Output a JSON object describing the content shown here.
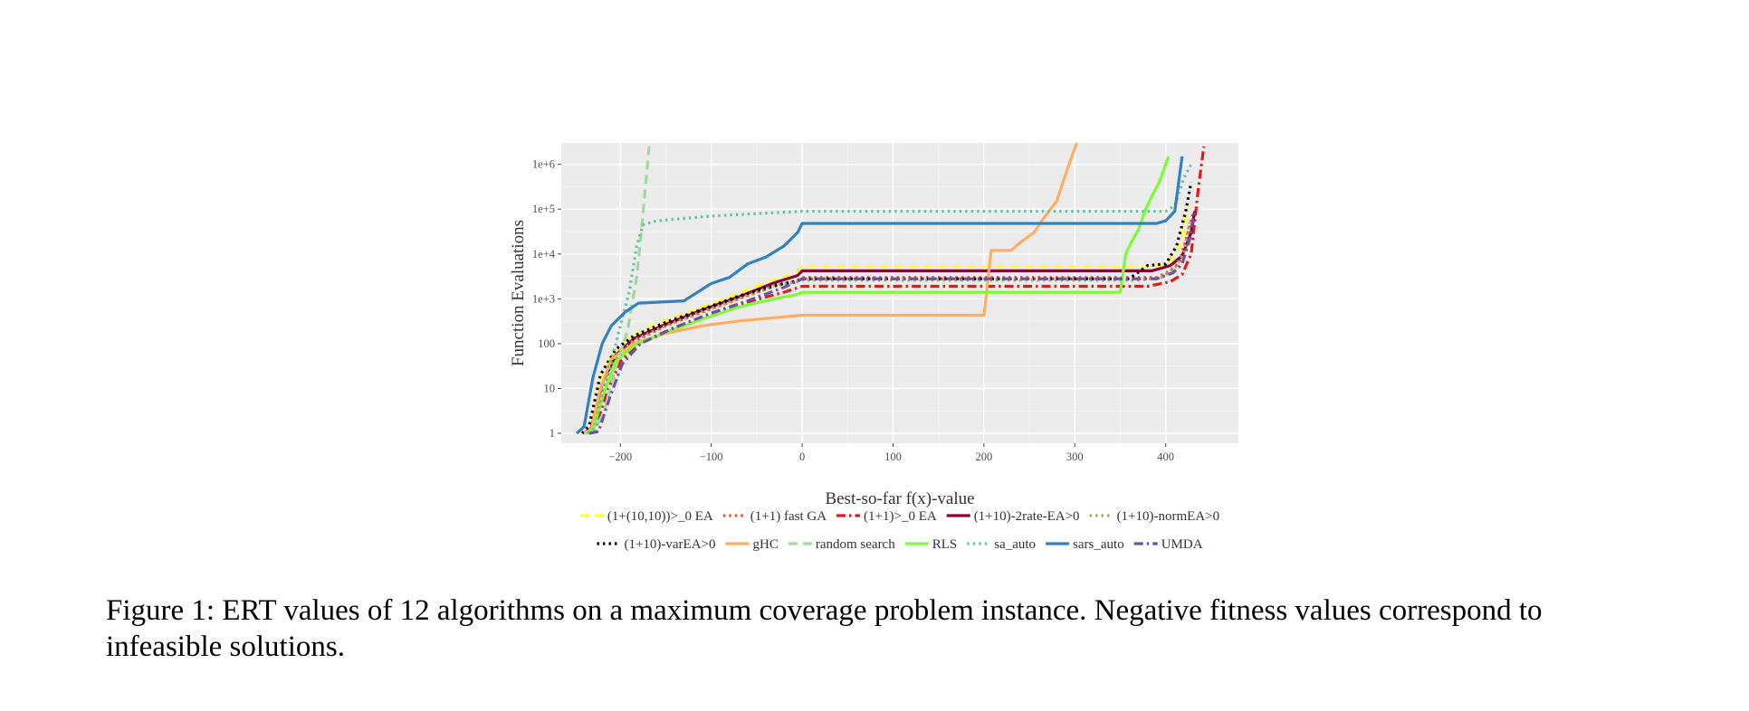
{
  "caption": "Figure 1: ERT values of 12 algorithms on a maximum coverage problem instance. Negative fitness values correspond to infeasible solutions.",
  "chart_data": {
    "type": "line",
    "title": "",
    "xlabel": "Best-so-far f(x)-value",
    "ylabel": "Function Evaluations",
    "xlim": [
      -265,
      480
    ],
    "ylim": [
      0.6,
      3000000
    ],
    "y_scale": "log10",
    "x_ticks": [
      -200,
      -100,
      0,
      100,
      200,
      300,
      400
    ],
    "x_tick_labels": [
      "−200",
      "−100",
      "0",
      "100",
      "200",
      "300",
      "400"
    ],
    "y_ticks": [
      1,
      10,
      100,
      1000,
      10000,
      100000,
      1000000
    ],
    "y_tick_labels": [
      "1",
      "10",
      "100",
      "1e+3",
      "1e+4",
      "1e+5",
      "1e+6"
    ],
    "grid": true,
    "legend_position": "bottom",
    "series": [
      {
        "name": "(1+(10,10))>_0 EA",
        "color": "#ffff33",
        "dash": "dashed",
        "points": [
          [
            -240,
            1
          ],
          [
            -232,
            1.3
          ],
          [
            -222,
            15
          ],
          [
            -210,
            55
          ],
          [
            -190,
            140
          ],
          [
            -160,
            280
          ],
          [
            -120,
            550
          ],
          [
            -80,
            1100
          ],
          [
            -40,
            2300
          ],
          [
            -5,
            3800
          ],
          [
            0,
            5200
          ],
          [
            380,
            5200
          ],
          [
            400,
            5500
          ],
          [
            410,
            9000
          ],
          [
            418,
            20000
          ],
          [
            425,
            120000
          ]
        ]
      },
      {
        "name": "(1+1) fast GA",
        "color": "#fc4e2a",
        "dash": "dotted",
        "points": [
          [
            -238,
            1
          ],
          [
            -230,
            1.2
          ],
          [
            -218,
            10
          ],
          [
            -205,
            45
          ],
          [
            -185,
            110
          ],
          [
            -150,
            250
          ],
          [
            -110,
            500
          ],
          [
            -70,
            1000
          ],
          [
            -30,
            1900
          ],
          [
            -5,
            2600
          ],
          [
            0,
            3000
          ],
          [
            390,
            3000
          ],
          [
            405,
            4200
          ],
          [
            415,
            6500
          ],
          [
            422,
            20000
          ],
          [
            430,
            80000
          ]
        ]
      },
      {
        "name": "(1+1)>_0 EA",
        "color": "#e31a1c",
        "dash": "dashdot",
        "points": [
          [
            -236,
            1
          ],
          [
            -228,
            1.2
          ],
          [
            -215,
            8
          ],
          [
            -200,
            40
          ],
          [
            -180,
            100
          ],
          [
            -140,
            230
          ],
          [
            -100,
            450
          ],
          [
            -60,
            850
          ],
          [
            -20,
            1400
          ],
          [
            0,
            1900
          ],
          [
            380,
            1900
          ],
          [
            405,
            2400
          ],
          [
            418,
            3500
          ],
          [
            428,
            10000
          ],
          [
            436,
            300000
          ],
          [
            442,
            2500000
          ]
        ]
      },
      {
        "name": "(1+10)-2rate-EA>0",
        "color": "#8b0038",
        "dash": "solid",
        "points": [
          [
            -240,
            1
          ],
          [
            -232,
            1.3
          ],
          [
            -220,
            13
          ],
          [
            -205,
            55
          ],
          [
            -185,
            130
          ],
          [
            -150,
            270
          ],
          [
            -110,
            560
          ],
          [
            -70,
            1100
          ],
          [
            -30,
            2300
          ],
          [
            -5,
            3300
          ],
          [
            0,
            4200
          ],
          [
            385,
            4200
          ],
          [
            405,
            5500
          ],
          [
            418,
            9000
          ],
          [
            428,
            30000
          ],
          [
            432,
            90000
          ]
        ]
      },
      {
        "name": "(1+10)-normEA>0",
        "color": "#a6a66a",
        "dash": "dotted",
        "points": [
          [
            -240,
            1
          ],
          [
            -232,
            1.3
          ],
          [
            -220,
            13
          ],
          [
            -205,
            52
          ],
          [
            -185,
            120
          ],
          [
            -150,
            250
          ],
          [
            -110,
            520
          ],
          [
            -70,
            1000
          ],
          [
            -30,
            2000
          ],
          [
            -5,
            2400
          ],
          [
            0,
            2600
          ],
          [
            370,
            2600
          ],
          [
            395,
            3000
          ],
          [
            410,
            4800
          ],
          [
            420,
            11000
          ],
          [
            426,
            50000
          ]
        ]
      },
      {
        "name": "(1+10)-varEA>0",
        "color": "#000000",
        "dash": "dotted",
        "points": [
          [
            -242,
            1
          ],
          [
            -234,
            1.5
          ],
          [
            -222,
            20
          ],
          [
            -205,
            75
          ],
          [
            -185,
            150
          ],
          [
            -150,
            300
          ],
          [
            -110,
            580
          ],
          [
            -70,
            1150
          ],
          [
            -30,
            2000
          ],
          [
            -5,
            2500
          ],
          [
            0,
            2800
          ],
          [
            360,
            2800
          ],
          [
            380,
            5500
          ],
          [
            400,
            6000
          ],
          [
            412,
            15000
          ],
          [
            422,
            90000
          ],
          [
            428,
            400000
          ]
        ]
      },
      {
        "name": "gHC",
        "color": "#fdae61",
        "dash": "solid",
        "points": [
          [
            -240,
            1
          ],
          [
            -232,
            1.2
          ],
          [
            -222,
            10
          ],
          [
            -210,
            45
          ],
          [
            -185,
            100
          ],
          [
            -150,
            170
          ],
          [
            -110,
            250
          ],
          [
            -70,
            320
          ],
          [
            -30,
            380
          ],
          [
            0,
            430
          ],
          [
            200,
            430
          ],
          [
            208,
            12000
          ],
          [
            230,
            12000
          ],
          [
            240,
            18000
          ],
          [
            255,
            30000
          ],
          [
            265,
            60000
          ],
          [
            280,
            150000
          ],
          [
            292,
            800000
          ],
          [
            302,
            3000000
          ]
        ]
      },
      {
        "name": "random search",
        "color": "#a1d99b",
        "dash": "dashed",
        "points": [
          [
            -236,
            1
          ],
          [
            -228,
            1.2
          ],
          [
            -218,
            3
          ],
          [
            -205,
            30
          ],
          [
            -192,
            200
          ],
          [
            -182,
            3000
          ],
          [
            -176,
            50000
          ],
          [
            -172,
            400000
          ],
          [
            -168,
            3000000
          ]
        ]
      },
      {
        "name": "RLS",
        "color": "#7cfc38",
        "dash": "solid",
        "points": [
          [
            -238,
            1
          ],
          [
            -230,
            1.2
          ],
          [
            -218,
            8
          ],
          [
            -205,
            40
          ],
          [
            -185,
            90
          ],
          [
            -150,
            180
          ],
          [
            -110,
            350
          ],
          [
            -70,
            650
          ],
          [
            -30,
            1000
          ],
          [
            -5,
            1250
          ],
          [
            0,
            1400
          ],
          [
            350,
            1400
          ],
          [
            356,
            10000
          ],
          [
            362,
            18000
          ],
          [
            370,
            35000
          ],
          [
            378,
            100000
          ],
          [
            385,
            200000
          ],
          [
            393,
            400000
          ],
          [
            400,
            1000000
          ],
          [
            403,
            1500000
          ]
        ]
      },
      {
        "name": "sa_auto",
        "color": "#66c2a5",
        "dash": "dotted",
        "points": [
          [
            -236,
            1
          ],
          [
            -228,
            1.3
          ],
          [
            -218,
            12
          ],
          [
            -205,
            100
          ],
          [
            -190,
            1500
          ],
          [
            -182,
            15000
          ],
          [
            -175,
            45000
          ],
          [
            -160,
            55000
          ],
          [
            -130,
            62000
          ],
          [
            -100,
            70000
          ],
          [
            -60,
            78000
          ],
          [
            -20,
            85000
          ],
          [
            0,
            90000
          ],
          [
            400,
            90000
          ],
          [
            410,
            120000
          ],
          [
            420,
            500000
          ],
          [
            428,
            1000000
          ]
        ]
      },
      {
        "name": "sars_auto",
        "color": "#3182bd",
        "dash": "solid",
        "points": [
          [
            -248,
            1
          ],
          [
            -240,
            1.4
          ],
          [
            -230,
            18
          ],
          [
            -220,
            100
          ],
          [
            -210,
            250
          ],
          [
            -195,
            500
          ],
          [
            -180,
            800
          ],
          [
            -130,
            900
          ],
          [
            -100,
            2200
          ],
          [
            -80,
            3000
          ],
          [
            -60,
            6000
          ],
          [
            -40,
            8500
          ],
          [
            -20,
            15000
          ],
          [
            -5,
            30000
          ],
          [
            0,
            48000
          ],
          [
            390,
            48000
          ],
          [
            400,
            55000
          ],
          [
            410,
            90000
          ],
          [
            418,
            1500000
          ]
        ]
      },
      {
        "name": "UMDA",
        "color": "#6a51a3",
        "dash": "dashdot",
        "points": [
          [
            -234,
            1
          ],
          [
            -224,
            1.1
          ],
          [
            -212,
            6
          ],
          [
            -198,
            35
          ],
          [
            -178,
            100
          ],
          [
            -140,
            230
          ],
          [
            -100,
            480
          ],
          [
            -60,
            900
          ],
          [
            -20,
            1800
          ],
          [
            0,
            2800
          ],
          [
            390,
            2800
          ],
          [
            408,
            3800
          ],
          [
            418,
            6000
          ],
          [
            426,
            20000
          ],
          [
            432,
            100000
          ]
        ]
      }
    ]
  }
}
